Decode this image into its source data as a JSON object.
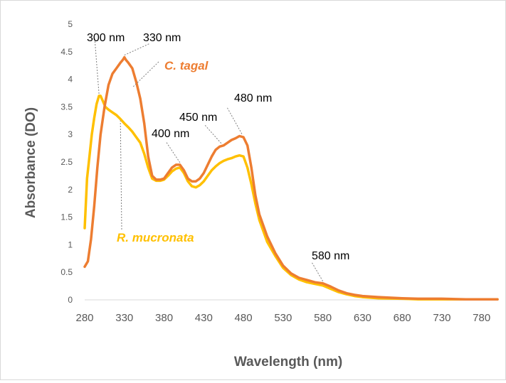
{
  "chart_data": {
    "type": "line",
    "title": "",
    "xlabel": "Wavelength (nm)",
    "ylabel": "Absorbance (DO)",
    "xlim": [
      280,
      800
    ],
    "ylim": [
      0,
      5
    ],
    "x_ticks": [
      "280",
      "330",
      "380",
      "430",
      "480",
      "530",
      "580",
      "630",
      "680",
      "730",
      "780"
    ],
    "y_ticks": [
      "0",
      "0.5",
      "1",
      "1.5",
      "2",
      "2.5",
      "3",
      "3.5",
      "4",
      "4.5",
      "5"
    ],
    "grid": false,
    "legend": "inline labels",
    "series": [
      {
        "name": "C. tagal",
        "color": "#ED7D31",
        "label_text": "C. tagal",
        "x": [
          280,
          284,
          288,
          292,
          296,
          300,
          305,
          310,
          315,
          320,
          325,
          328,
          330,
          332,
          335,
          340,
          345,
          350,
          355,
          360,
          365,
          370,
          375,
          380,
          385,
          390,
          395,
          400,
          405,
          410,
          415,
          420,
          425,
          430,
          435,
          440,
          445,
          450,
          455,
          460,
          465,
          470,
          475,
          480,
          485,
          490,
          495,
          500,
          510,
          520,
          530,
          540,
          550,
          560,
          570,
          580,
          590,
          600,
          610,
          620,
          630,
          650,
          680,
          700,
          730,
          760,
          780,
          800
        ],
        "y": [
          0.6,
          0.7,
          1.1,
          1.7,
          2.4,
          3.0,
          3.5,
          3.9,
          4.1,
          4.2,
          4.3,
          4.35,
          4.4,
          4.35,
          4.3,
          4.2,
          3.95,
          3.65,
          3.2,
          2.6,
          2.25,
          2.18,
          2.18,
          2.2,
          2.3,
          2.4,
          2.45,
          2.45,
          2.35,
          2.2,
          2.15,
          2.15,
          2.2,
          2.3,
          2.45,
          2.6,
          2.72,
          2.78,
          2.8,
          2.85,
          2.9,
          2.93,
          2.97,
          2.95,
          2.8,
          2.4,
          1.9,
          1.55,
          1.15,
          0.85,
          0.62,
          0.48,
          0.4,
          0.36,
          0.32,
          0.3,
          0.24,
          0.17,
          0.12,
          0.09,
          0.07,
          0.05,
          0.03,
          0.02,
          0.02,
          0.01,
          0.01,
          0.01
        ]
      },
      {
        "name": "R. mucronata",
        "color": "#FFC000",
        "label_text": "R. mucronata",
        "x": [
          280,
          283,
          286,
          289,
          292,
          295,
          298,
          300,
          303,
          306,
          310,
          315,
          320,
          325,
          330,
          335,
          340,
          345,
          350,
          355,
          360,
          365,
          370,
          375,
          380,
          385,
          390,
          395,
          400,
          405,
          410,
          415,
          420,
          425,
          430,
          435,
          440,
          445,
          450,
          455,
          460,
          465,
          470,
          475,
          480,
          485,
          490,
          495,
          500,
          510,
          520,
          530,
          540,
          550,
          560,
          570,
          580,
          590,
          600,
          610,
          620,
          630,
          650,
          680,
          700,
          730,
          760,
          780,
          800
        ],
        "y": [
          1.3,
          2.2,
          2.6,
          3.0,
          3.3,
          3.55,
          3.7,
          3.7,
          3.6,
          3.5,
          3.45,
          3.4,
          3.35,
          3.28,
          3.2,
          3.13,
          3.05,
          2.95,
          2.85,
          2.65,
          2.4,
          2.2,
          2.16,
          2.16,
          2.18,
          2.25,
          2.33,
          2.38,
          2.4,
          2.3,
          2.15,
          2.06,
          2.04,
          2.08,
          2.15,
          2.25,
          2.35,
          2.42,
          2.48,
          2.52,
          2.55,
          2.57,
          2.6,
          2.62,
          2.6,
          2.4,
          2.1,
          1.75,
          1.45,
          1.05,
          0.8,
          0.58,
          0.45,
          0.37,
          0.32,
          0.29,
          0.26,
          0.2,
          0.14,
          0.1,
          0.07,
          0.05,
          0.03,
          0.02,
          0.01,
          0.01,
          0.01,
          0.01,
          0.01
        ]
      }
    ],
    "annotations": [
      {
        "text": "300 nm",
        "x": 298,
        "y": 3.7
      },
      {
        "text": "330 nm",
        "x": 330,
        "y": 4.4
      },
      {
        "text": "400 nm",
        "x": 400,
        "y": 2.45
      },
      {
        "text": "450 nm",
        "x": 452,
        "y": 2.8
      },
      {
        "text": "480 nm",
        "x": 478,
        "y": 2.97
      },
      {
        "text": "580 nm",
        "x": 580,
        "y": 0.3
      }
    ]
  }
}
